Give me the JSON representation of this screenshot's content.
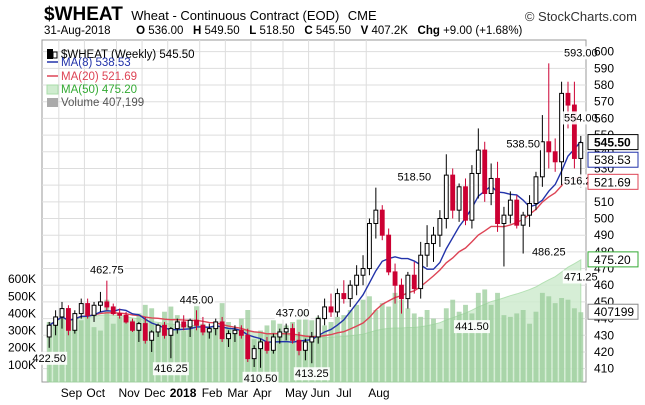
{
  "header": {
    "symbol": "$WHEAT",
    "name": "Wheat - Continuous Contract (EOD)",
    "exchange": "CME",
    "brand": "© StockCharts.com",
    "date": "31-Aug-2018",
    "open_label": "O",
    "open": "536.00",
    "high_label": "H",
    "high": "549.50",
    "low_label": "L",
    "low": "518.50",
    "close_label": "C",
    "close": "545.50",
    "volume_label": "V",
    "volume": "407.2K",
    "chg_label": "Chg",
    "chg": "+9.00 (+1.68%)"
  },
  "legend": {
    "main": "$WHEAT (Weekly) 545.50",
    "ma8": "MA(8) 538.53",
    "ma20": "MA(20) 521.69",
    "ma50": "MA(50) 475.20",
    "volume": "Volume 407,199"
  },
  "colors": {
    "up": "#ffffff",
    "down": "#cc0033",
    "ma8": "#2233aa",
    "ma20": "#dd4455",
    "ma50_fill": "#cfeccf",
    "ma50_line": "#a8dca8",
    "volume_bar": "#99cc99",
    "grid": "#dddddd"
  },
  "chart_data": {
    "type": "candlestick",
    "timeframe": "weekly",
    "y_ticks": [
      410,
      420,
      430,
      440,
      450,
      460,
      470,
      480,
      490,
      500,
      510,
      520,
      530,
      540,
      550,
      560,
      570,
      580,
      590,
      600
    ],
    "ylim": [
      402,
      607
    ],
    "volume_ticks": [
      "100K",
      "200K",
      "300K",
      "400K",
      "500K",
      "600K"
    ],
    "months": [
      "Sep",
      "Oct",
      "Nov",
      "Dec",
      "2018",
      "Feb",
      "Mar",
      "Apr",
      "May",
      "Jun",
      "Jul",
      "Aug"
    ],
    "right_tags": [
      {
        "text": "545.50",
        "style": "close"
      },
      {
        "text": "538.53",
        "style": "ma8"
      },
      {
        "text": "521.69",
        "style": "ma20"
      },
      {
        "text": "475.20",
        "style": "ma50"
      },
      {
        "text": "407199",
        "style": "volume"
      }
    ],
    "annotations": [
      {
        "text": "462.75",
        "x": 9,
        "y": 462.75,
        "pos": "above"
      },
      {
        "text": "422.50",
        "x": 0,
        "y": 422.5,
        "pos": "below"
      },
      {
        "text": "445.00",
        "x": 23,
        "y": 445.0,
        "pos": "above"
      },
      {
        "text": "416.25",
        "x": 19,
        "y": 416.25,
        "pos": "below"
      },
      {
        "text": "437.00",
        "x": 38,
        "y": 437.0,
        "pos": "above"
      },
      {
        "text": "410.50",
        "x": 33,
        "y": 410.5,
        "pos": "below"
      },
      {
        "text": "413.25",
        "x": 41,
        "y": 413.25,
        "pos": "below"
      },
      {
        "text": "518.50",
        "x": 57,
        "y": 518.5,
        "pos": "above"
      },
      {
        "text": "441.50",
        "x": 66,
        "y": 441.5,
        "pos": "below"
      },
      {
        "text": "538.50",
        "x": 74,
        "y": 538.5,
        "pos": "above"
      },
      {
        "text": "486.25",
        "x": 78,
        "y": 486.25,
        "pos": "below"
      },
      {
        "text": "554.00",
        "x": 83,
        "y": 554.0,
        "pos": "above"
      },
      {
        "text": "516.25",
        "x": 95,
        "y": 516.25,
        "pos": "above"
      },
      {
        "text": "471.25",
        "x": 96,
        "y": 471.25,
        "pos": "below"
      },
      {
        "text": "593.00",
        "x": 102,
        "y": 593.0,
        "pos": "above"
      }
    ],
    "candles": [
      {
        "o": 429,
        "h": 438,
        "l": 422.5,
        "c": 436,
        "v": 350
      },
      {
        "o": 436,
        "h": 445,
        "l": 430,
        "c": 441,
        "v": 340
      },
      {
        "o": 441,
        "h": 450,
        "l": 434,
        "c": 446,
        "v": 390
      },
      {
        "o": 446,
        "h": 448,
        "l": 430,
        "c": 433,
        "v": 420
      },
      {
        "o": 433,
        "h": 445,
        "l": 431,
        "c": 443,
        "v": 330
      },
      {
        "o": 443,
        "h": 452,
        "l": 440,
        "c": 449,
        "v": 360
      },
      {
        "o": 449,
        "h": 452,
        "l": 440,
        "c": 442,
        "v": 410
      },
      {
        "o": 442,
        "h": 450,
        "l": 438,
        "c": 448,
        "v": 320
      },
      {
        "o": 448,
        "h": 456,
        "l": 444,
        "c": 450,
        "v": 300
      },
      {
        "o": 450,
        "h": 462.75,
        "l": 445,
        "c": 447,
        "v": 480
      },
      {
        "o": 447,
        "h": 449,
        "l": 442,
        "c": 443,
        "v": 340
      },
      {
        "o": 443,
        "h": 446,
        "l": 440,
        "c": 442,
        "v": 380
      },
      {
        "o": 442,
        "h": 444,
        "l": 437,
        "c": 438,
        "v": 390
      },
      {
        "o": 438,
        "h": 440,
        "l": 432,
        "c": 433,
        "v": 360
      },
      {
        "o": 433,
        "h": 438,
        "l": 426,
        "c": 437,
        "v": 400
      },
      {
        "o": 437,
        "h": 441,
        "l": 425,
        "c": 427,
        "v": 450
      },
      {
        "o": 427,
        "h": 433,
        "l": 420,
        "c": 432,
        "v": 430
      },
      {
        "o": 432,
        "h": 437,
        "l": 429,
        "c": 436,
        "v": 300
      },
      {
        "o": 436,
        "h": 438,
        "l": 428,
        "c": 430,
        "v": 410
      },
      {
        "o": 430,
        "h": 435,
        "l": 416.25,
        "c": 434,
        "v": 440
      },
      {
        "o": 434,
        "h": 440,
        "l": 431,
        "c": 438,
        "v": 390
      },
      {
        "o": 438,
        "h": 442,
        "l": 433,
        "c": 435,
        "v": 300
      },
      {
        "o": 435,
        "h": 440,
        "l": 429,
        "c": 439,
        "v": 350
      },
      {
        "o": 439,
        "h": 445,
        "l": 433,
        "c": 436,
        "v": 470
      },
      {
        "o": 436,
        "h": 441,
        "l": 430,
        "c": 432,
        "v": 340
      },
      {
        "o": 432,
        "h": 437,
        "l": 428,
        "c": 434,
        "v": 310
      },
      {
        "o": 434,
        "h": 440,
        "l": 430,
        "c": 438,
        "v": 330
      },
      {
        "o": 438,
        "h": 441,
        "l": 426,
        "c": 428,
        "v": 460
      },
      {
        "o": 428,
        "h": 433,
        "l": 423,
        "c": 431,
        "v": 350
      },
      {
        "o": 431,
        "h": 436,
        "l": 426,
        "c": 433,
        "v": 300
      },
      {
        "o": 433,
        "h": 436,
        "l": 428,
        "c": 430,
        "v": 370
      },
      {
        "o": 430,
        "h": 434,
        "l": 414,
        "c": 416,
        "v": 420
      },
      {
        "o": 416,
        "h": 424,
        "l": 411,
        "c": 422,
        "v": 250
      },
      {
        "o": 422,
        "h": 428,
        "l": 410.5,
        "c": 426,
        "v": 300
      },
      {
        "o": 426,
        "h": 429,
        "l": 419,
        "c": 421,
        "v": 330
      },
      {
        "o": 421,
        "h": 431,
        "l": 419,
        "c": 429,
        "v": 360
      },
      {
        "o": 429,
        "h": 434,
        "l": 425,
        "c": 432,
        "v": 340
      },
      {
        "o": 432,
        "h": 437,
        "l": 427,
        "c": 434,
        "v": 330
      },
      {
        "o": 434,
        "h": 437,
        "l": 425,
        "c": 427,
        "v": 350
      },
      {
        "o": 427,
        "h": 432,
        "l": 418,
        "c": 421,
        "v": 380
      },
      {
        "o": 421,
        "h": 428,
        "l": 415,
        "c": 426,
        "v": 420
      },
      {
        "o": 426,
        "h": 432,
        "l": 413.25,
        "c": 429,
        "v": 360
      },
      {
        "o": 429,
        "h": 442,
        "l": 425,
        "c": 440,
        "v": 380
      },
      {
        "o": 440,
        "h": 452,
        "l": 436,
        "c": 447,
        "v": 330
      },
      {
        "o": 447,
        "h": 455,
        "l": 441,
        "c": 444,
        "v": 350
      },
      {
        "o": 444,
        "h": 458,
        "l": 441,
        "c": 455,
        "v": 380
      },
      {
        "o": 455,
        "h": 463,
        "l": 449,
        "c": 452,
        "v": 390
      },
      {
        "o": 452,
        "h": 463,
        "l": 447,
        "c": 460,
        "v": 420
      },
      {
        "o": 460,
        "h": 472,
        "l": 454,
        "c": 466,
        "v": 450
      },
      {
        "o": 466,
        "h": 478,
        "l": 460,
        "c": 470,
        "v": 480
      },
      {
        "o": 470,
        "h": 500,
        "l": 466,
        "c": 497,
        "v": 500
      },
      {
        "o": 497,
        "h": 518.5,
        "l": 488,
        "c": 505,
        "v": 420
      },
      {
        "o": 505,
        "h": 508,
        "l": 487,
        "c": 490,
        "v": 460
      },
      {
        "o": 490,
        "h": 494,
        "l": 466,
        "c": 468,
        "v": 440
      },
      {
        "o": 468,
        "h": 473,
        "l": 449,
        "c": 460,
        "v": 520
      },
      {
        "o": 460,
        "h": 464,
        "l": 443,
        "c": 452,
        "v": 480
      },
      {
        "o": 452,
        "h": 468,
        "l": 446,
        "c": 466,
        "v": 430
      },
      {
        "o": 466,
        "h": 474,
        "l": 455,
        "c": 458,
        "v": 400
      },
      {
        "o": 458,
        "h": 486,
        "l": 452,
        "c": 478,
        "v": 380
      },
      {
        "o": 478,
        "h": 496,
        "l": 471,
        "c": 485,
        "v": 420
      },
      {
        "o": 485,
        "h": 495,
        "l": 474,
        "c": 490,
        "v": 370
      },
      {
        "o": 490,
        "h": 505,
        "l": 483,
        "c": 500,
        "v": 310
      },
      {
        "o": 500,
        "h": 538.5,
        "l": 494,
        "c": 526,
        "v": 430
      },
      {
        "o": 526,
        "h": 530,
        "l": 500,
        "c": 505,
        "v": 480
      },
      {
        "o": 505,
        "h": 521,
        "l": 498,
        "c": 519,
        "v": 410
      },
      {
        "o": 519,
        "h": 524,
        "l": 496,
        "c": 499,
        "v": 450
      },
      {
        "o": 499,
        "h": 532,
        "l": 494,
        "c": 527,
        "v": 400
      },
      {
        "o": 527,
        "h": 554,
        "l": 512,
        "c": 541,
        "v": 520
      },
      {
        "o": 541,
        "h": 546,
        "l": 510,
        "c": 515,
        "v": 540
      },
      {
        "o": 515,
        "h": 533,
        "l": 508,
        "c": 524,
        "v": 450
      },
      {
        "o": 524,
        "h": 534,
        "l": 492,
        "c": 497,
        "v": 520
      },
      {
        "o": 497,
        "h": 507,
        "l": 471.25,
        "c": 502,
        "v": 390
      },
      {
        "o": 502,
        "h": 516.25,
        "l": 497,
        "c": 511,
        "v": 380
      },
      {
        "o": 511,
        "h": 514,
        "l": 494,
        "c": 496,
        "v": 400
      },
      {
        "o": 496,
        "h": 504,
        "l": 479,
        "c": 502,
        "v": 420
      },
      {
        "o": 502,
        "h": 514,
        "l": 495,
        "c": 509,
        "v": 340
      },
      {
        "o": 509,
        "h": 528,
        "l": 505,
        "c": 525,
        "v": 410
      },
      {
        "o": 525,
        "h": 562,
        "l": 519,
        "c": 546,
        "v": 520
      },
      {
        "o": 546,
        "h": 593,
        "l": 530,
        "c": 540,
        "v": 500
      },
      {
        "o": 540,
        "h": 548,
        "l": 528,
        "c": 534,
        "v": 460
      },
      {
        "o": 534,
        "h": 582,
        "l": 520,
        "c": 575,
        "v": 490
      },
      {
        "o": 575,
        "h": 582,
        "l": 554,
        "c": 568,
        "v": 480
      },
      {
        "o": 568,
        "h": 582,
        "l": 530,
        "c": 536,
        "v": 430
      },
      {
        "o": 536,
        "h": 549.5,
        "l": 518.5,
        "c": 545.5,
        "v": 407
      }
    ]
  }
}
